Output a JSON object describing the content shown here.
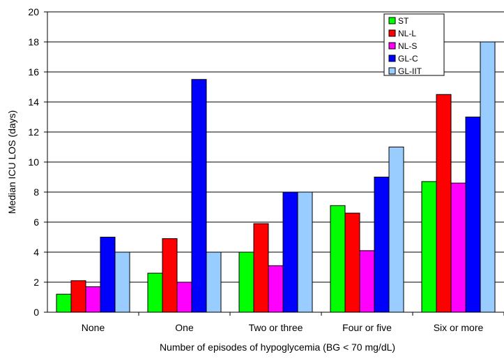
{
  "chart_data": {
    "type": "bar",
    "title": "",
    "xlabel": "Number of episodes of hypoglycemia (BG < 70 mg/dL)",
    "ylabel": "Median ICU LOS (days)",
    "ylim": [
      0,
      20
    ],
    "yticks": [
      "0",
      "2",
      "4",
      "6",
      "8",
      "10",
      "12",
      "14",
      "16",
      "18",
      "20"
    ],
    "grid": true,
    "legend_position": "top-right",
    "categories": [
      "None",
      "One",
      "Two or three",
      "Four or five",
      "Six or more"
    ],
    "series": [
      {
        "name": "ST",
        "color": "#00ff00",
        "values": [
          1.2,
          2.6,
          4.0,
          7.1,
          8.7
        ]
      },
      {
        "name": "NL-L",
        "color": "#ff0000",
        "values": [
          2.1,
          4.9,
          5.9,
          6.6,
          14.5
        ]
      },
      {
        "name": "NL-S",
        "color": "#ff00ff",
        "values": [
          1.7,
          2.0,
          3.1,
          4.1,
          8.6
        ]
      },
      {
        "name": "GL-C",
        "color": "#0000ff",
        "values": [
          5.0,
          15.5,
          8.0,
          9.0,
          13.0
        ]
      },
      {
        "name": "GL-IIT",
        "color": "#99ccff",
        "values": [
          4.0,
          4.0,
          8.0,
          11.0,
          18.0
        ]
      }
    ]
  }
}
